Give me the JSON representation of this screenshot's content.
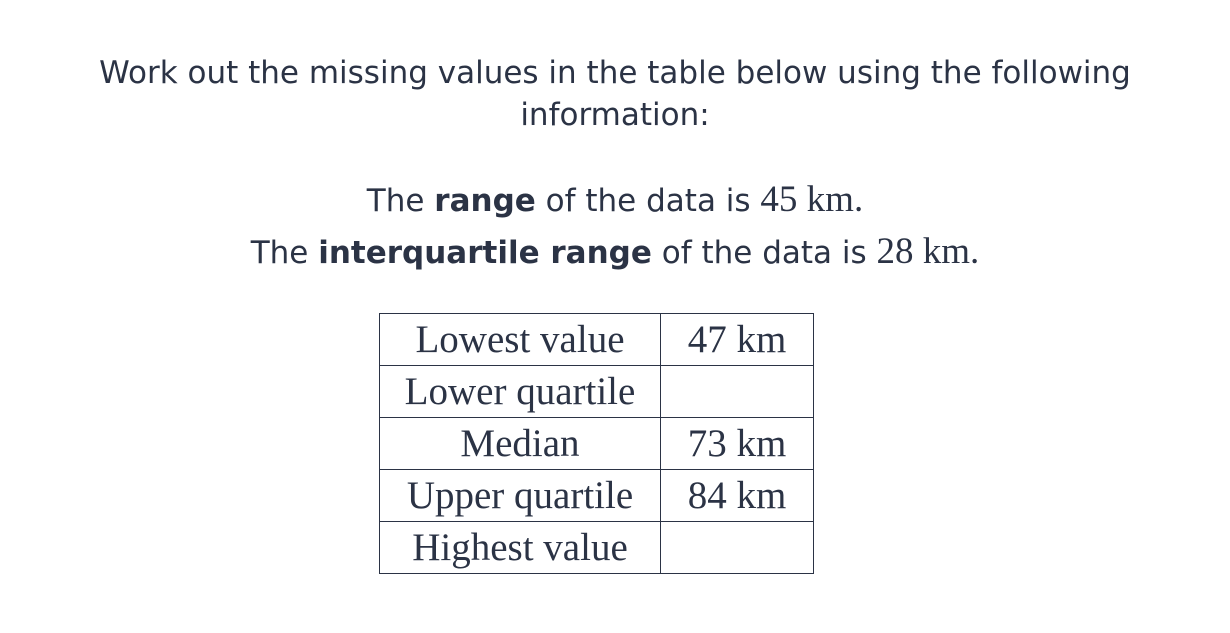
{
  "question": {
    "line1": "Work out the missing values in the table below using the following",
    "line2": "information:"
  },
  "info": [
    {
      "prefix": "The ",
      "term": "range",
      "suffix": " of the data is ",
      "value": "45 km."
    },
    {
      "prefix": "The ",
      "term": "interquartile range",
      "suffix": " of the data is ",
      "value": "28 km."
    }
  ],
  "table": {
    "rows": [
      {
        "label": "Lowest value",
        "value": "47 km"
      },
      {
        "label": "Lower quartile",
        "value": ""
      },
      {
        "label": "Median",
        "value": "73 km"
      },
      {
        "label": "Upper quartile",
        "value": "84 km"
      },
      {
        "label": "Highest value",
        "value": ""
      }
    ]
  }
}
